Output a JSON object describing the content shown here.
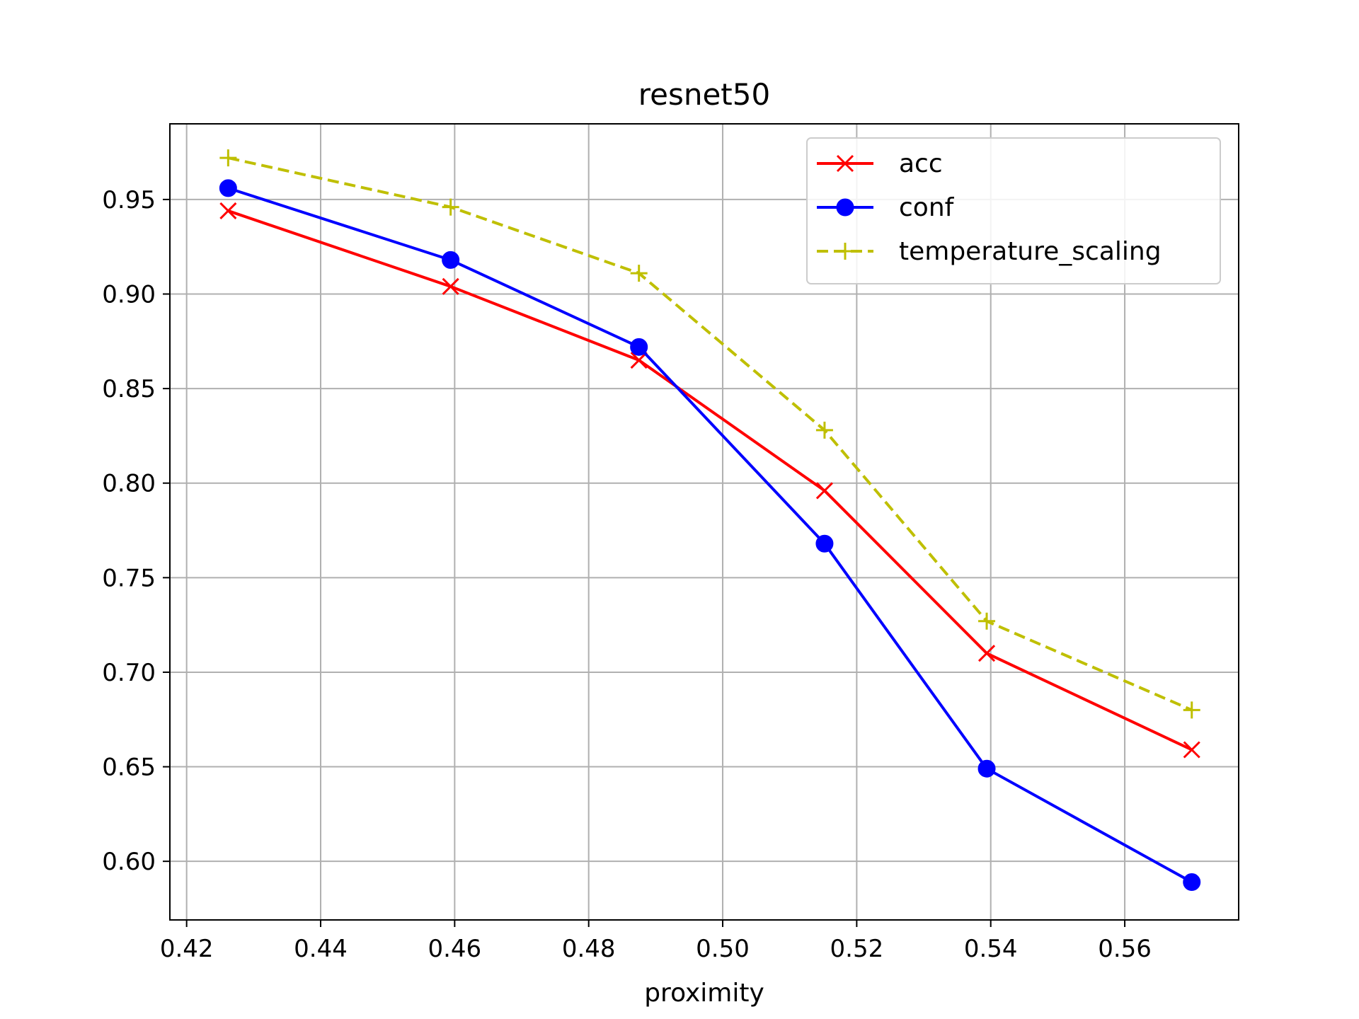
{
  "chart_data": {
    "type": "line",
    "title": "resnet50",
    "xlabel": "proximity",
    "ylabel": "",
    "xlim": [
      0.4175,
      0.577
    ],
    "ylim": [
      0.569,
      0.99
    ],
    "xticks": [
      0.42,
      0.44,
      0.46,
      0.48,
      0.5,
      0.52,
      0.54,
      0.56
    ],
    "xtick_labels": [
      "0.42",
      "0.44",
      "0.46",
      "0.48",
      "0.50",
      "0.52",
      "0.54",
      "0.56"
    ],
    "yticks": [
      0.6,
      0.65,
      0.7,
      0.75,
      0.8,
      0.85,
      0.9,
      0.95
    ],
    "ytick_labels": [
      "0.60",
      "0.65",
      "0.70",
      "0.75",
      "0.80",
      "0.85",
      "0.90",
      "0.95"
    ],
    "grid": true,
    "legend_position": "top-right",
    "x": [
      0.4262,
      0.4594,
      0.4875,
      0.5152,
      0.5394,
      0.57
    ],
    "series": [
      {
        "name": "acc",
        "color": "#ff0000",
        "marker": "x",
        "linestyle": "solid",
        "values": [
          0.944,
          0.904,
          0.865,
          0.796,
          0.71,
          0.659
        ]
      },
      {
        "name": "conf",
        "color": "#0000ff",
        "marker": "circle",
        "linestyle": "solid",
        "values": [
          0.956,
          0.918,
          0.872,
          0.768,
          0.649,
          0.589
        ]
      },
      {
        "name": "temperature_scaling",
        "color": "#bfbf00",
        "marker": "plus",
        "linestyle": "dashed",
        "values": [
          0.972,
          0.946,
          0.911,
          0.828,
          0.727,
          0.68
        ]
      }
    ]
  }
}
